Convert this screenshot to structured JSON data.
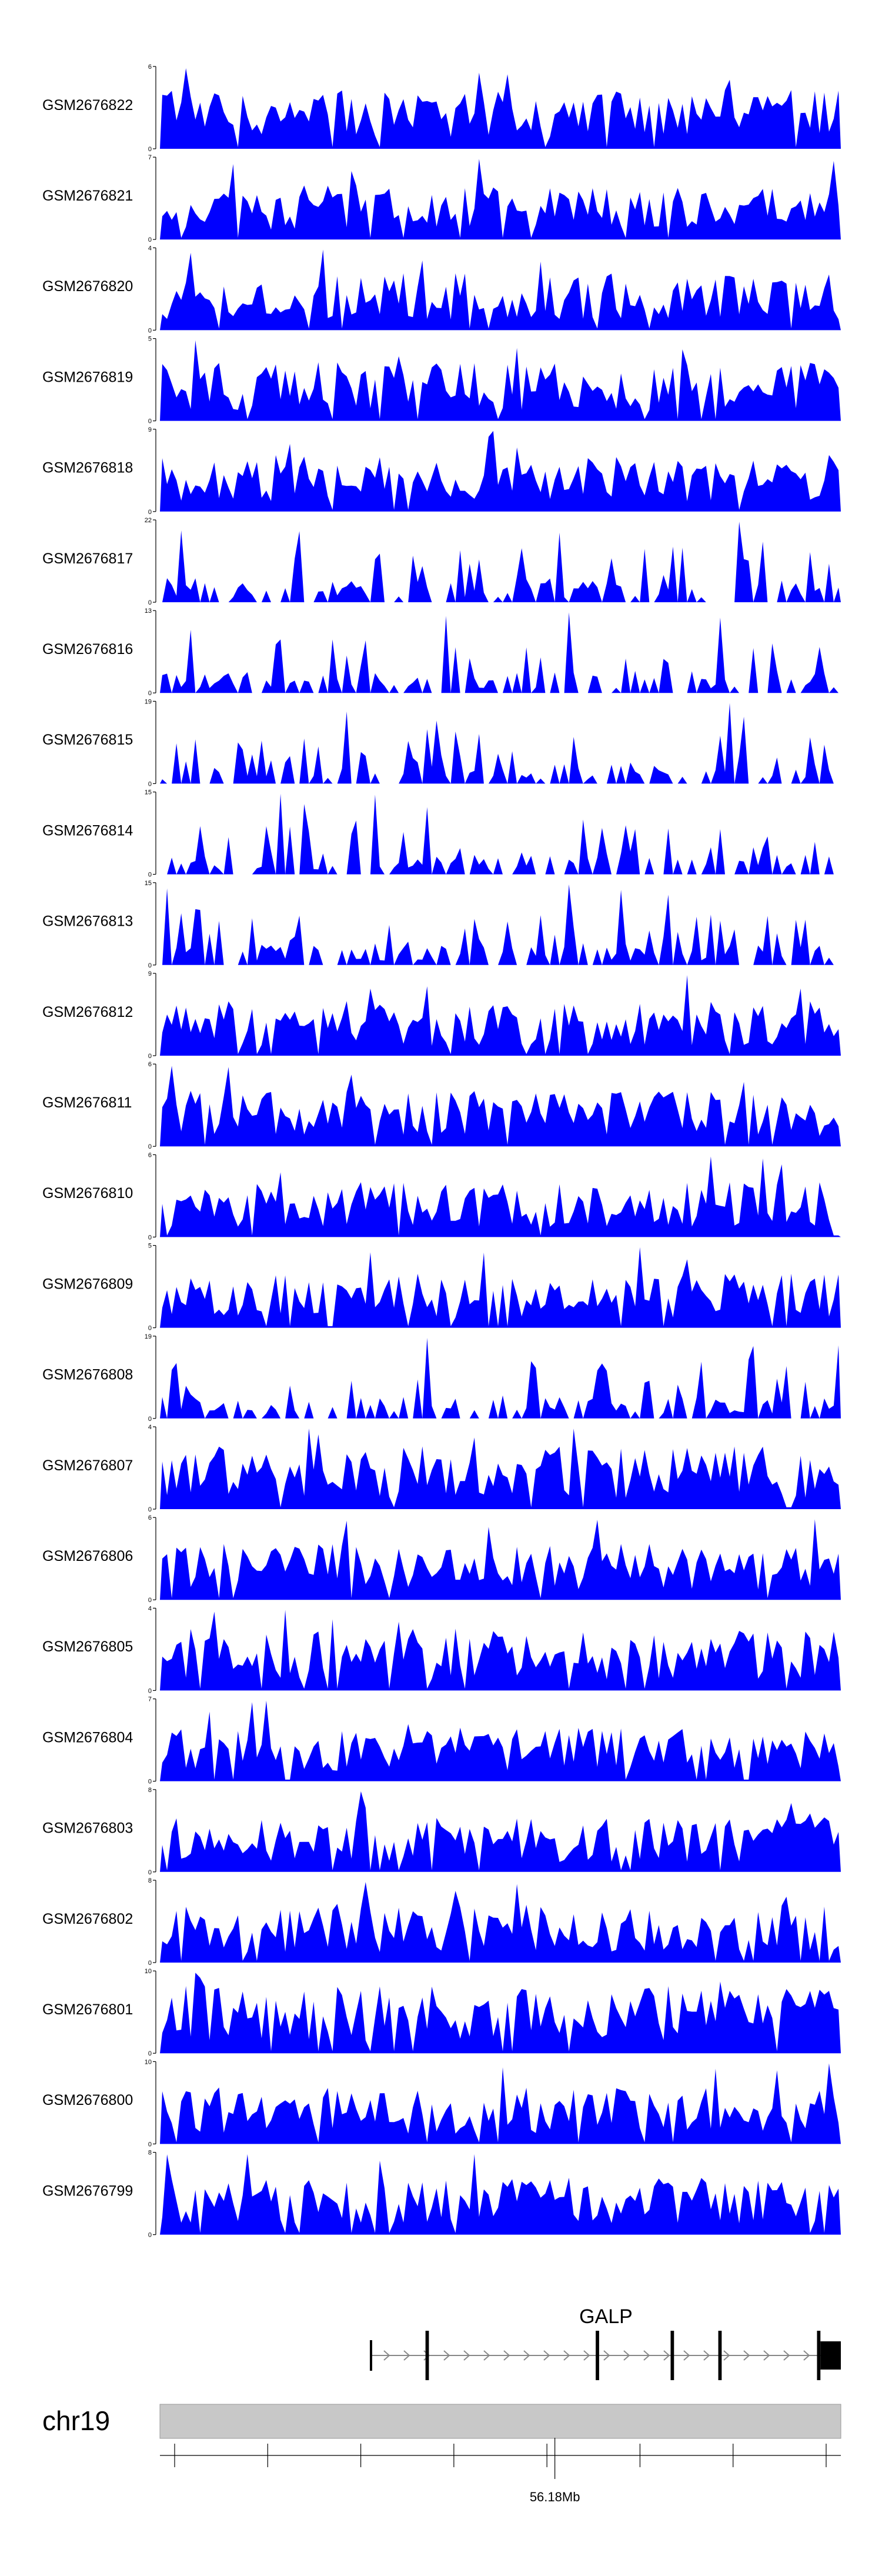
{
  "chart_data": {
    "type": "area",
    "title": "",
    "xlabel": "",
    "ylabel": "",
    "color": "#0000FF",
    "n_bins": 144,
    "tracks": [
      {
        "name": "GSM2676822",
        "ymax": 6
      },
      {
        "name": "GSM2676821",
        "ymax": 7
      },
      {
        "name": "GSM2676820",
        "ymax": 4
      },
      {
        "name": "GSM2676819",
        "ymax": 5
      },
      {
        "name": "GSM2676818",
        "ymax": 9
      },
      {
        "name": "GSM2676817",
        "ymax": 22
      },
      {
        "name": "GSM2676816",
        "ymax": 13
      },
      {
        "name": "GSM2676815",
        "ymax": 19
      },
      {
        "name": "GSM2676814",
        "ymax": 15
      },
      {
        "name": "GSM2676813",
        "ymax": 15
      },
      {
        "name": "GSM2676812",
        "ymax": 9
      },
      {
        "name": "GSM2676811",
        "ymax": 6
      },
      {
        "name": "GSM2676810",
        "ymax": 6
      },
      {
        "name": "GSM2676809",
        "ymax": 5
      },
      {
        "name": "GSM2676808",
        "ymax": 19
      },
      {
        "name": "GSM2676807",
        "ymax": 4
      },
      {
        "name": "GSM2676806",
        "ymax": 6
      },
      {
        "name": "GSM2676805",
        "ymax": 4
      },
      {
        "name": "GSM2676804",
        "ymax": 7
      },
      {
        "name": "GSM2676803",
        "ymax": 8
      },
      {
        "name": "GSM2676802",
        "ymax": 8
      },
      {
        "name": "GSM2676801",
        "ymax": 10
      },
      {
        "name": "GSM2676800",
        "ymax": 10
      },
      {
        "name": "GSM2676799",
        "ymax": 8
      }
    ],
    "gene": {
      "name": "GALP",
      "strand": "+",
      "start_frac": 0.31,
      "end_frac": 1.0,
      "exons_frac": [
        [
          0.39,
          0.395
        ],
        [
          0.64,
          0.645
        ],
        [
          0.75,
          0.755
        ],
        [
          0.82,
          0.825
        ],
        [
          0.965,
          0.97
        ],
        [
          0.97,
          1.0
        ]
      ]
    },
    "ideogram": {
      "chromosome": "chr19",
      "axis_label": "56.18Mb",
      "axis_label_frac": 0.58,
      "n_ticks": 8
    }
  }
}
